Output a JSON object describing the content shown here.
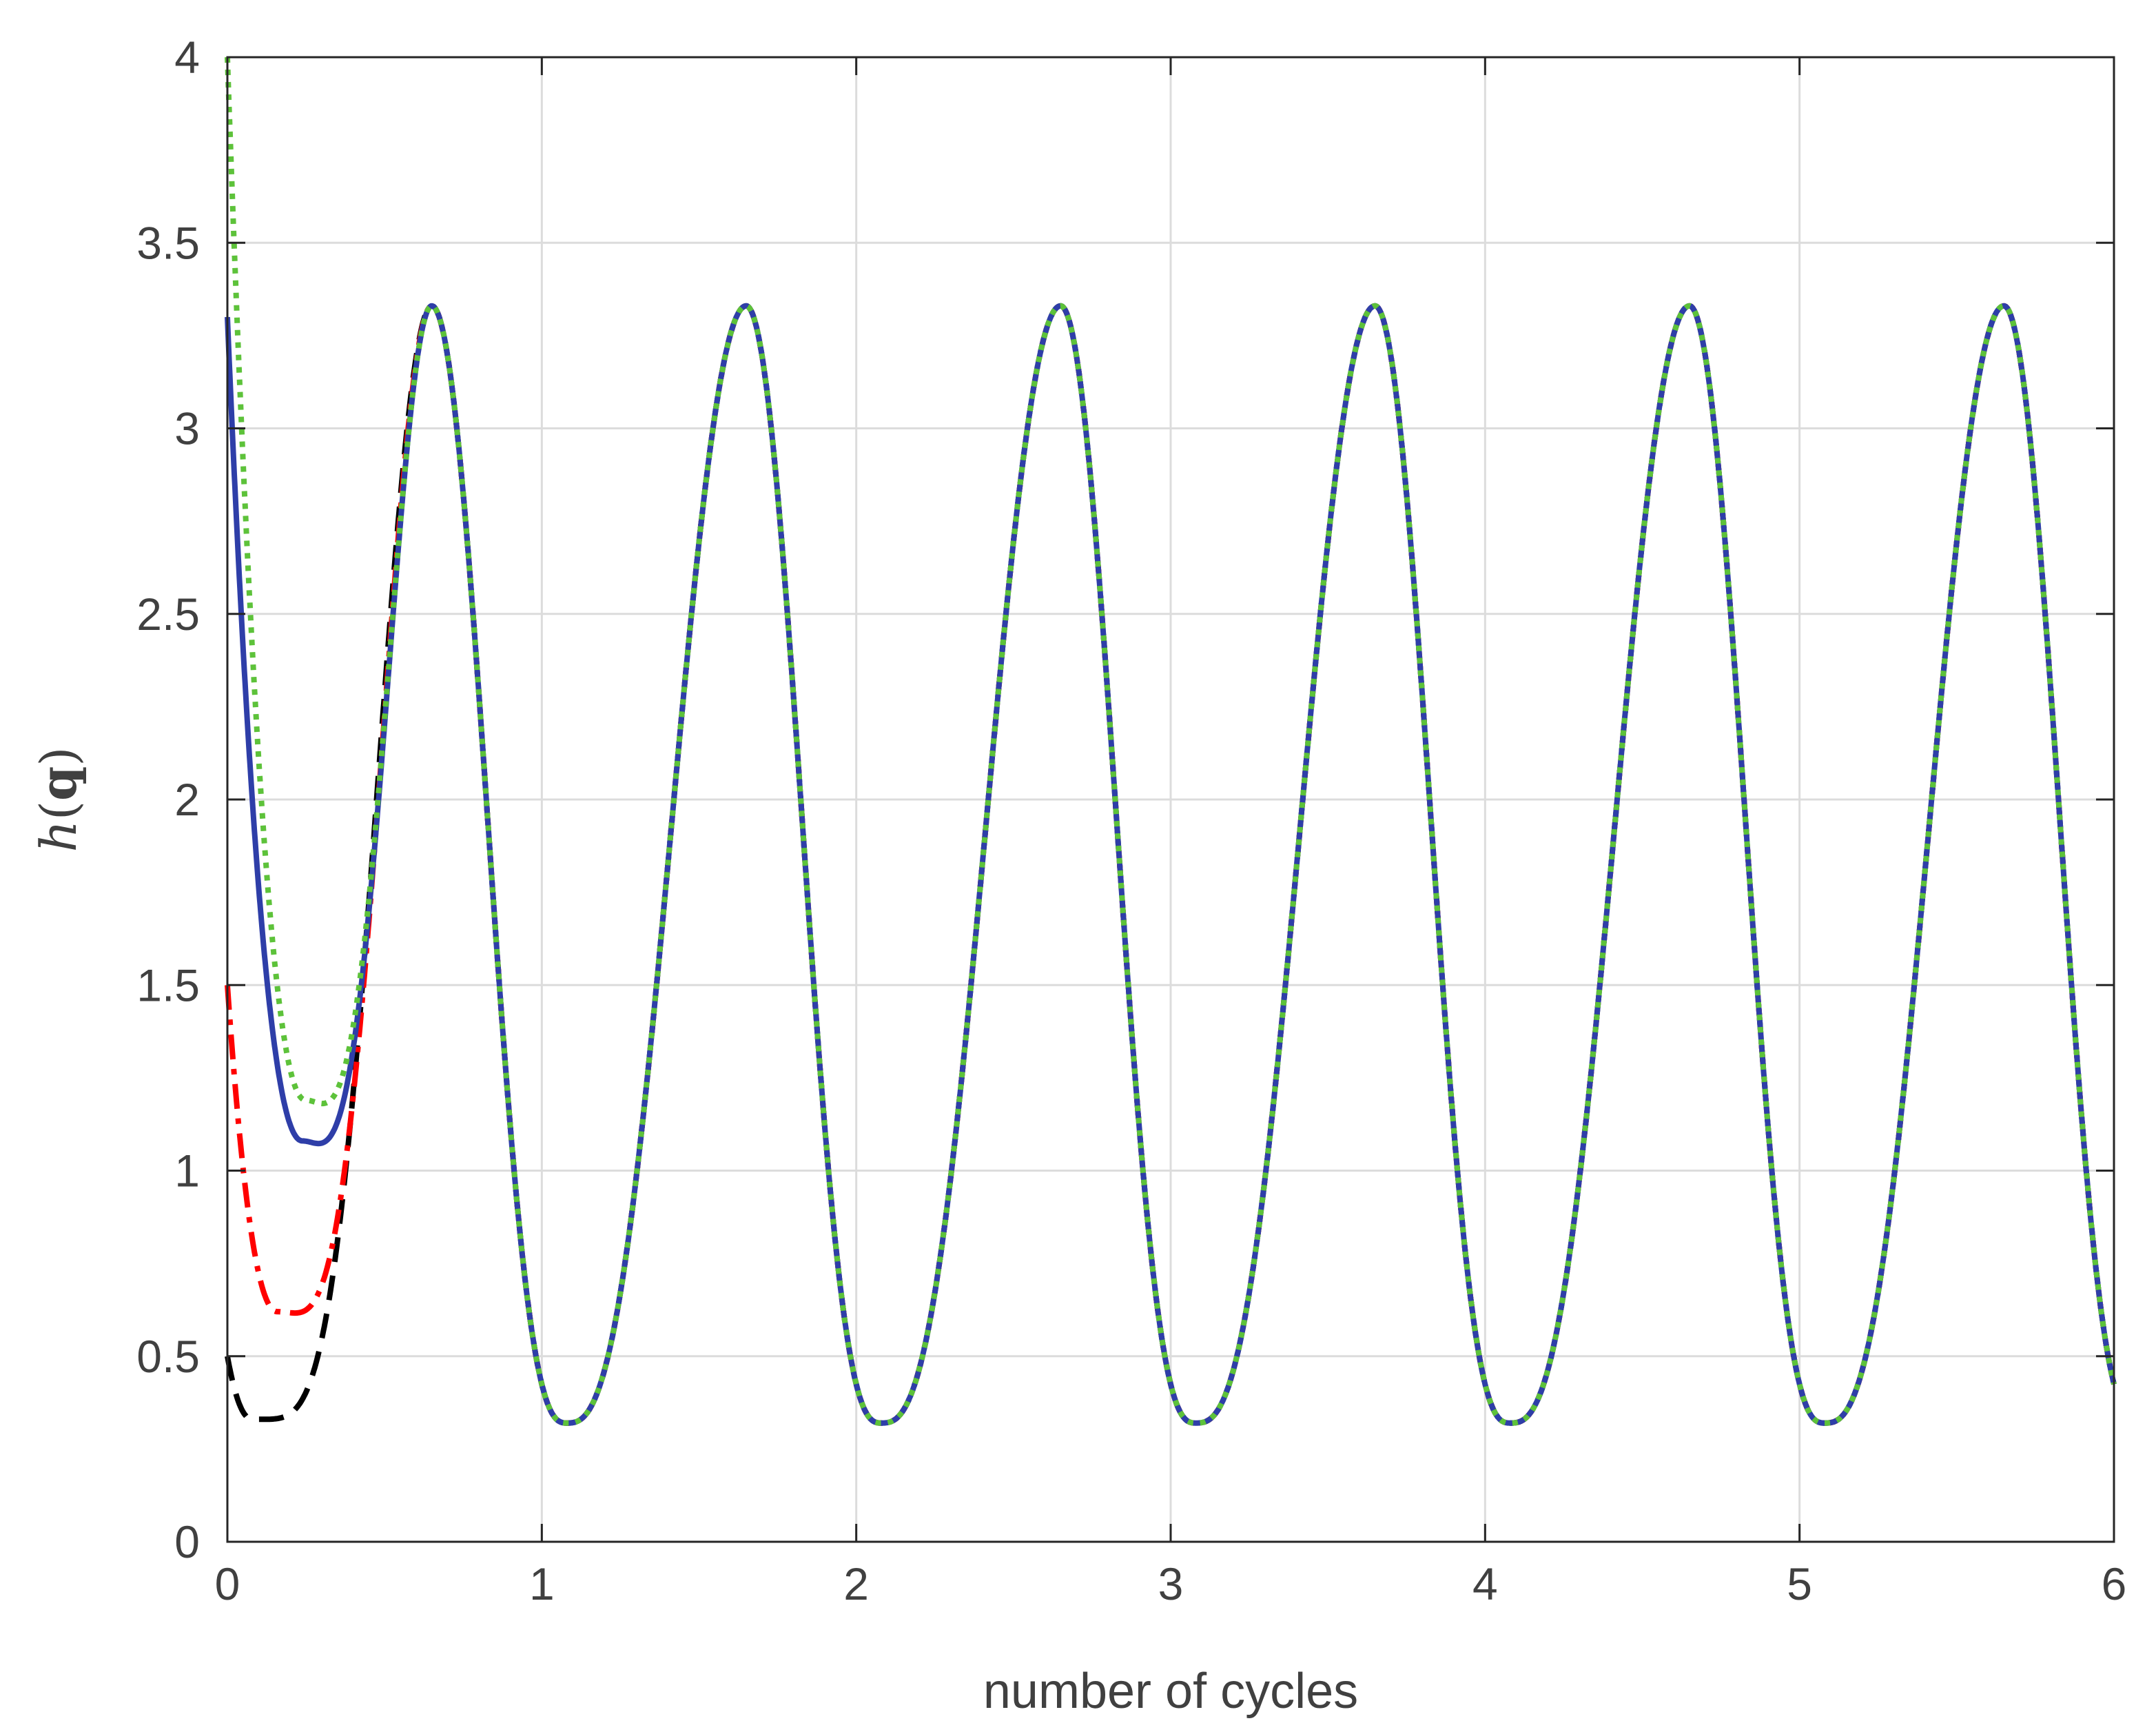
{
  "chart_data": {
    "type": "line",
    "title": "",
    "xlabel": "number of cycles",
    "ylabel": "h(q)",
    "ylabel_parts": {
      "h": "h",
      "open": "(",
      "q": "q",
      "close": ")"
    },
    "xlim": [
      0,
      6
    ],
    "ylim": [
      0,
      4
    ],
    "xticks": [
      0,
      1,
      2,
      3,
      4,
      5,
      6
    ],
    "yticks": [
      0,
      0.5,
      1,
      1.5,
      2,
      2.5,
      3,
      3.5,
      4
    ],
    "xtick_labels": [
      "0",
      "1",
      "2",
      "3",
      "4",
      "5",
      "6"
    ],
    "ytick_labels": [
      "0",
      "0.5",
      "1",
      "1.5",
      "2",
      "2.5",
      "3",
      "3.5",
      "4"
    ],
    "grid": true,
    "legend": "none",
    "steady_state": {
      "period": 1,
      "peak_x": [
        0.65,
        1.65,
        2.65,
        3.65,
        4.65,
        5.65
      ],
      "peak_y": 3.33,
      "trough_x": [
        1.08,
        2.08,
        3.08,
        4.08,
        5.08
      ],
      "trough_y": 0.32
    },
    "series": [
      {
        "color": "#000000",
        "style": "dashed",
        "start": 0.5,
        "min_x": 0.08,
        "min_y": 0.33
      },
      {
        "color": "#ff0000",
        "style": "dashdot",
        "start": 1.5,
        "min_x": 0.16,
        "min_y": 0.62
      },
      {
        "color": "#2e3ea8",
        "style": "solid",
        "start": 3.3,
        "min_x": 0.24,
        "min_y": 1.08
      },
      {
        "color": "#5dc23a",
        "style": "dotted",
        "start": 4.0,
        "min_x": 0.25,
        "min_y": 1.19
      }
    ]
  }
}
